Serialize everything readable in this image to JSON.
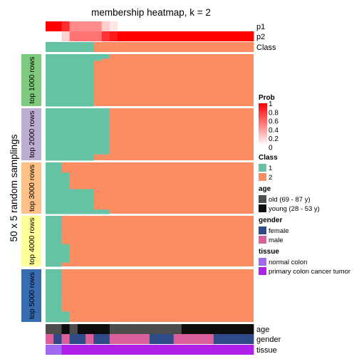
{
  "chart_data": {
    "type": "heatmap",
    "title": "membership heatmap, k = 2",
    "ylabel": "50 x 5 random samplings",
    "n_samples": 26,
    "class_colors": {
      "1": "#66C2A5",
      "2": "#FC8D62"
    },
    "top_annotations": [
      {
        "name": "p1",
        "values": [
          1,
          1,
          0.82,
          0.45,
          0.45,
          0.45,
          0.45,
          0.2,
          0.1,
          0,
          0,
          0,
          0,
          0,
          0,
          0,
          0,
          0,
          0,
          0,
          0,
          0,
          0,
          0,
          0,
          0
        ]
      },
      {
        "name": "p2",
        "values": [
          0,
          0,
          0.18,
          0.55,
          0.55,
          0.55,
          0.55,
          0.8,
          0.9,
          1,
          1,
          1,
          1,
          1,
          1,
          1,
          1,
          1,
          1,
          1,
          1,
          1,
          1,
          1,
          1,
          1
        ]
      },
      {
        "name": "Class",
        "values": [
          1,
          1,
          1,
          1,
          1,
          1,
          2,
          2,
          2,
          2,
          2,
          2,
          2,
          2,
          2,
          2,
          2,
          2,
          2,
          2,
          2,
          2,
          2,
          2,
          2,
          2
        ]
      }
    ],
    "row_groups": [
      {
        "label": "top 1000 rows",
        "color": "#7FC97F",
        "boundaries": [
          6,
          6,
          6,
          6,
          6,
          6,
          6,
          6,
          6,
          6,
          6,
          6,
          6,
          6,
          6,
          6,
          6,
          6,
          6,
          6,
          6,
          6,
          6,
          6,
          6,
          6,
          6,
          6,
          6,
          6,
          6,
          6,
          6,
          6,
          6,
          6,
          6,
          6,
          6,
          6,
          6,
          6,
          6,
          6,
          6,
          6,
          6,
          6,
          6,
          6
        ],
        "rows_per_row_boundary_note": ""
      },
      {
        "label": "top 2000 rows",
        "color": "#BEAED4"
      },
      {
        "label": "top 3000 rows",
        "color": "#FDC086"
      },
      {
        "label": "top 4000 rows",
        "color": "#FFFF99"
      },
      {
        "label": "top 5000 rows",
        "color": "#386CB0"
      }
    ],
    "bottom_annotations": [
      {
        "name": "age",
        "categories": [
          "old",
          "old",
          "young",
          "old",
          "young",
          "young",
          "young",
          "young",
          "old",
          "old",
          "old",
          "old",
          "old",
          "old",
          "old",
          "old",
          "old",
          "young",
          "young",
          "young",
          "young",
          "young",
          "young",
          "young",
          "young",
          "young"
        ]
      },
      {
        "name": "gender",
        "categories": [
          "male",
          "female",
          "male",
          "female",
          "female",
          "male",
          "female",
          "female",
          "male",
          "male",
          "male",
          "male",
          "male",
          "female",
          "female",
          "female",
          "male",
          "male",
          "male",
          "male",
          "male",
          "female",
          "female",
          "female",
          "female",
          "female"
        ]
      },
      {
        "name": "tissue",
        "categories": [
          "normal",
          "normal",
          "primary",
          "primary",
          "primary",
          "primary",
          "primary",
          "primary",
          "primary",
          "primary",
          "primary",
          "primary",
          "primary",
          "primary",
          "primary",
          "primary",
          "primary",
          "primary",
          "primary",
          "primary",
          "primary",
          "primary",
          "primary",
          "primary",
          "primary",
          "primary"
        ]
      }
    ],
    "legend": {
      "prob_title": "Prob",
      "prob_ticks": [
        "1",
        "0.8",
        "0.6",
        "0.4",
        "0.2",
        "0"
      ],
      "class_title": "Class",
      "class_items": [
        {
          "label": "1",
          "color": "#66C2A5"
        },
        {
          "label": "2",
          "color": "#FC8D62"
        }
      ],
      "age_title": "age",
      "age_items": [
        {
          "label": "old (69 - 87 y)",
          "color": "#4D4D4D"
        },
        {
          "label": "young (28 - 53 y)",
          "color": "#0D0D0D"
        }
      ],
      "gender_title": "gender",
      "gender_items": [
        {
          "label": "female",
          "color": "#2E4A87"
        },
        {
          "label": "male",
          "color": "#D9609A"
        }
      ],
      "tissue_title": "tissue",
      "tissue_items": [
        {
          "label": "normal colon",
          "color": "#9F69F0"
        },
        {
          "label": "primary colon cancer tumor",
          "color": "#AE1FE7"
        }
      ]
    }
  }
}
